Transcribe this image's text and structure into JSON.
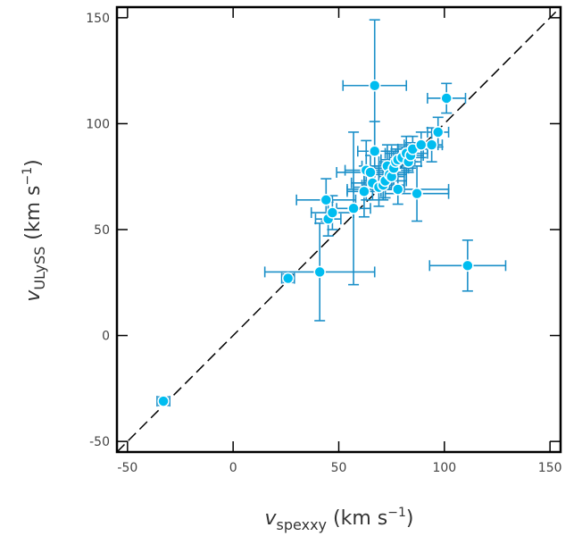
{
  "chart_data": {
    "type": "scatter",
    "title": "",
    "xlabel": {
      "main": "v",
      "sub": "spexxy",
      "unit": "(km s",
      "sup": "−1",
      "close": ")"
    },
    "ylabel": {
      "main": "v",
      "sub": "ULySS",
      "unit": "(km s",
      "sup": "−1",
      "close": ")"
    },
    "xlim": [
      -55,
      155
    ],
    "ylim": [
      -55,
      155
    ],
    "xticks": [
      -50,
      0,
      50,
      100,
      150
    ],
    "yticks": [
      -50,
      0,
      50,
      100,
      150
    ],
    "xtick_labels": [
      "-50",
      "0",
      "50",
      "100",
      "150"
    ],
    "ytick_labels": [
      "-50",
      "0",
      "50",
      "100",
      "150"
    ],
    "grid": false,
    "reference_line": {
      "style": "dashed",
      "from": [
        -55,
        -55
      ],
      "to": [
        155,
        155
      ],
      "color": "#000000"
    },
    "marker_color": "#00bdf0",
    "errorbar_color": "#1a8fc8",
    "points": [
      {
        "x": -33,
        "y": -31,
        "xerr": 3,
        "yerr": 2
      },
      {
        "x": 26,
        "y": 27,
        "xerr": 3,
        "yerr": 2
      },
      {
        "x": 41,
        "y": 30,
        "xerr": 26,
        "yerr": 23
      },
      {
        "x": 111,
        "y": 33,
        "xerr": 18,
        "yerr": 12
      },
      {
        "x": 44,
        "y": 64,
        "xerr": 14,
        "yerr": 10
      },
      {
        "x": 45,
        "y": 55,
        "xerr": 6,
        "yerr": 8
      },
      {
        "x": 47,
        "y": 58,
        "xerr": 10,
        "yerr": 8
      },
      {
        "x": 57,
        "y": 60,
        "xerr": 8,
        "yerr": 36
      },
      {
        "x": 62,
        "y": 68,
        "xerr": 8,
        "yerr": 12
      },
      {
        "x": 63,
        "y": 78,
        "xerr": 10,
        "yerr": 14
      },
      {
        "x": 65,
        "y": 77,
        "xerr": 16,
        "yerr": 8
      },
      {
        "x": 66,
        "y": 72,
        "xerr": 10,
        "yerr": 8
      },
      {
        "x": 67,
        "y": 87,
        "xerr": 8,
        "yerr": 14
      },
      {
        "x": 67,
        "y": 118,
        "xerr": 15,
        "yerr": 31
      },
      {
        "x": 69,
        "y": 70,
        "xerr": 12,
        "yerr": 9
      },
      {
        "x": 71,
        "y": 71,
        "xerr": 10,
        "yerr": 7
      },
      {
        "x": 72,
        "y": 73,
        "xerr": 10,
        "yerr": 8
      },
      {
        "x": 73,
        "y": 80,
        "xerr": 12,
        "yerr": 10
      },
      {
        "x": 74,
        "y": 76,
        "xerr": 8,
        "yerr": 7
      },
      {
        "x": 75,
        "y": 75,
        "xerr": 6,
        "yerr": 6
      },
      {
        "x": 76,
        "y": 79,
        "xerr": 7,
        "yerr": 8
      },
      {
        "x": 77,
        "y": 82,
        "xerr": 8,
        "yerr": 6
      },
      {
        "x": 78,
        "y": 83,
        "xerr": 8,
        "yerr": 7
      },
      {
        "x": 78,
        "y": 69,
        "xerr": 24,
        "yerr": 7
      },
      {
        "x": 80,
        "y": 84,
        "xerr": 6,
        "yerr": 5
      },
      {
        "x": 82,
        "y": 86,
        "xerr": 10,
        "yerr": 8
      },
      {
        "x": 83,
        "y": 82,
        "xerr": 6,
        "yerr": 5
      },
      {
        "x": 84,
        "y": 85,
        "xerr": 6,
        "yerr": 6
      },
      {
        "x": 85,
        "y": 88,
        "xerr": 7,
        "yerr": 6
      },
      {
        "x": 87,
        "y": 67,
        "xerr": 15,
        "yerr": 13
      },
      {
        "x": 89,
        "y": 90,
        "xerr": 8,
        "yerr": 6
      },
      {
        "x": 94,
        "y": 90,
        "xerr": 5,
        "yerr": 8
      },
      {
        "x": 97,
        "y": 96,
        "xerr": 5,
        "yerr": 7
      },
      {
        "x": 101,
        "y": 112,
        "xerr": 9,
        "yerr": 7
      }
    ]
  }
}
